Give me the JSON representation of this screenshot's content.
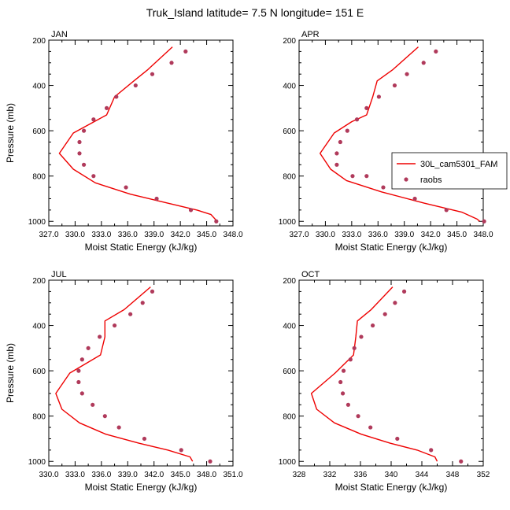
{
  "figure_title": "Truk_Island  latitude= 7.5 N longitude= 151 E",
  "legend": {
    "model_label": "30L_cam5301_FAM",
    "obs_label": "raobs"
  },
  "colors": {
    "model": "#ee0000",
    "obs": "#b03a5b",
    "axis": "#000000"
  },
  "chart_data": [
    {
      "type": "line",
      "panel": "JAN",
      "title": "JAN",
      "xlabel": "Moist Static Energy (kJ/kg)",
      "ylabel": "Pressure (mb)",
      "xlim": [
        327.0,
        348.0
      ],
      "ylim": [
        200,
        1020
      ],
      "xticks": [
        327.0,
        330.0,
        333.0,
        336.0,
        339.0,
        342.0,
        345.0,
        348.0
      ],
      "xtick_labels": [
        "327.0",
        "330.0",
        "333.0",
        "336.0",
        "339.0",
        "342.0",
        "345.0",
        "348.0"
      ],
      "yticks": [
        200,
        400,
        600,
        800,
        1000
      ],
      "ytick_labels": [
        "200",
        "400",
        "600",
        "800",
        "1000"
      ],
      "series": [
        {
          "name": "30L_cam5301_FAM",
          "style": "line",
          "x": [
            341.1,
            338.3,
            336.7,
            334.5,
            333.6,
            329.8,
            328.2,
            329.8,
            332.3,
            336.3,
            340.6,
            343.9,
            345.5,
            346.2
          ],
          "y": [
            230,
            330,
            380,
            450,
            530,
            610,
            700,
            770,
            830,
            880,
            920,
            950,
            970,
            1000
          ]
        },
        {
          "name": "raobs",
          "style": "markers",
          "x": [
            342.6,
            341.0,
            338.8,
            336.9,
            334.7,
            333.6,
            332.1,
            331.0,
            330.5,
            330.5,
            331.0,
            332.1,
            335.8,
            339.3,
            343.2,
            346.1
          ],
          "y": [
            250,
            300,
            350,
            400,
            450,
            500,
            550,
            600,
            650,
            700,
            750,
            800,
            850,
            900,
            950,
            1000
          ]
        }
      ]
    },
    {
      "type": "line",
      "panel": "APR",
      "title": "APR",
      "xlabel": "Moist Static Energy (kJ/kg)",
      "ylabel": "",
      "xlim": [
        327.0,
        348.0
      ],
      "ylim": [
        200,
        1020
      ],
      "xticks": [
        327.0,
        330.0,
        333.0,
        336.0,
        339.0,
        342.0,
        345.0,
        348.0
      ],
      "xtick_labels": [
        "327.0",
        "330.0",
        "333.0",
        "336.0",
        "339.0",
        "342.0",
        "345.0",
        "348.0"
      ],
      "yticks": [
        200,
        400,
        600,
        800,
        1000
      ],
      "ytick_labels": [
        "200",
        "400",
        "600",
        "800",
        "1000"
      ],
      "series": [
        {
          "name": "30L_cam5301_FAM",
          "style": "line",
          "x": [
            340.6,
            337.7,
            335.9,
            335.4,
            334.7,
            333.0,
            331.0,
            329.4,
            330.6,
            332.4,
            336.4,
            341.3,
            345.6,
            347.3,
            347.6
          ],
          "y": [
            230,
            330,
            380,
            450,
            530,
            560,
            610,
            700,
            770,
            820,
            870,
            920,
            960,
            990,
            1000
          ]
        },
        {
          "name": "raobs",
          "style": "markers",
          "x": [
            342.6,
            341.2,
            339.3,
            337.9,
            336.1,
            334.7,
            333.6,
            332.5,
            331.7,
            331.3,
            331.3,
            333.1,
            334.7,
            336.6,
            340.2,
            343.8,
            348.1
          ],
          "y": [
            250,
            300,
            350,
            400,
            450,
            500,
            550,
            600,
            650,
            700,
            750,
            800,
            800,
            850,
            900,
            950,
            1000
          ]
        }
      ]
    },
    {
      "type": "line",
      "panel": "JUL",
      "title": "JUL",
      "xlabel": "Moist Static Energy (kJ/kg)",
      "ylabel": "Pressure (mb)",
      "xlim": [
        330.0,
        351.0
      ],
      "ylim": [
        200,
        1020
      ],
      "xticks": [
        330.0,
        333.0,
        336.0,
        339.0,
        342.0,
        345.0,
        348.0,
        351.0
      ],
      "xtick_labels": [
        "330.0",
        "333.0",
        "336.0",
        "339.0",
        "342.0",
        "345.0",
        "348.0",
        "351.0"
      ],
      "yticks": [
        200,
        400,
        600,
        800,
        1000
      ],
      "ytick_labels": [
        "200",
        "400",
        "600",
        "800",
        "1000"
      ],
      "series": [
        {
          "name": "30L_cam5301_FAM",
          "style": "line",
          "x": [
            341.6,
            338.6,
            336.4,
            336.4,
            335.9,
            332.4,
            330.8,
            331.5,
            333.5,
            336.5,
            340.3,
            343.6,
            346.1,
            346.4
          ],
          "y": [
            230,
            330,
            380,
            450,
            530,
            610,
            700,
            770,
            830,
            880,
            920,
            950,
            980,
            1000
          ]
        },
        {
          "name": "raobs",
          "style": "markers",
          "x": [
            341.8,
            340.7,
            339.3,
            337.5,
            335.8,
            334.5,
            333.8,
            333.4,
            333.4,
            333.8,
            335.0,
            336.4,
            338.0,
            340.9,
            345.1,
            348.4
          ],
          "y": [
            250,
            300,
            350,
            400,
            450,
            500,
            550,
            600,
            650,
            700,
            750,
            800,
            850,
            900,
            950,
            1000
          ]
        }
      ]
    },
    {
      "type": "line",
      "panel": "OCT",
      "title": "OCT",
      "xlabel": "Moist Static Energy (kJ/kg)",
      "ylabel": "",
      "xlim": [
        328,
        352
      ],
      "ylim": [
        200,
        1020
      ],
      "xticks": [
        328,
        332,
        336,
        340,
        344,
        348,
        352
      ],
      "xtick_labels": [
        "328",
        "332",
        "336",
        "340",
        "344",
        "348",
        "352"
      ],
      "yticks": [
        200,
        400,
        600,
        800,
        1000
      ],
      "ytick_labels": [
        "200",
        "400",
        "600",
        "800",
        "1000"
      ],
      "series": [
        {
          "name": "30L_cam5301_FAM",
          "style": "line",
          "x": [
            340.2,
            337.4,
            335.6,
            335.4,
            335.1,
            332.7,
            329.6,
            330.3,
            332.6,
            336.1,
            339.9,
            343.4,
            345.7,
            346.0
          ],
          "y": [
            230,
            330,
            380,
            450,
            530,
            610,
            700,
            770,
            830,
            880,
            920,
            950,
            980,
            1000
          ]
        },
        {
          "name": "raobs",
          "style": "markers",
          "x": [
            341.7,
            340.5,
            339.2,
            337.6,
            336.1,
            335.2,
            334.7,
            333.8,
            333.4,
            333.7,
            334.4,
            335.7,
            337.3,
            340.8,
            345.2,
            349.1
          ],
          "y": [
            250,
            300,
            350,
            400,
            450,
            500,
            550,
            600,
            650,
            700,
            750,
            800,
            850,
            900,
            950,
            1000
          ]
        }
      ]
    }
  ]
}
